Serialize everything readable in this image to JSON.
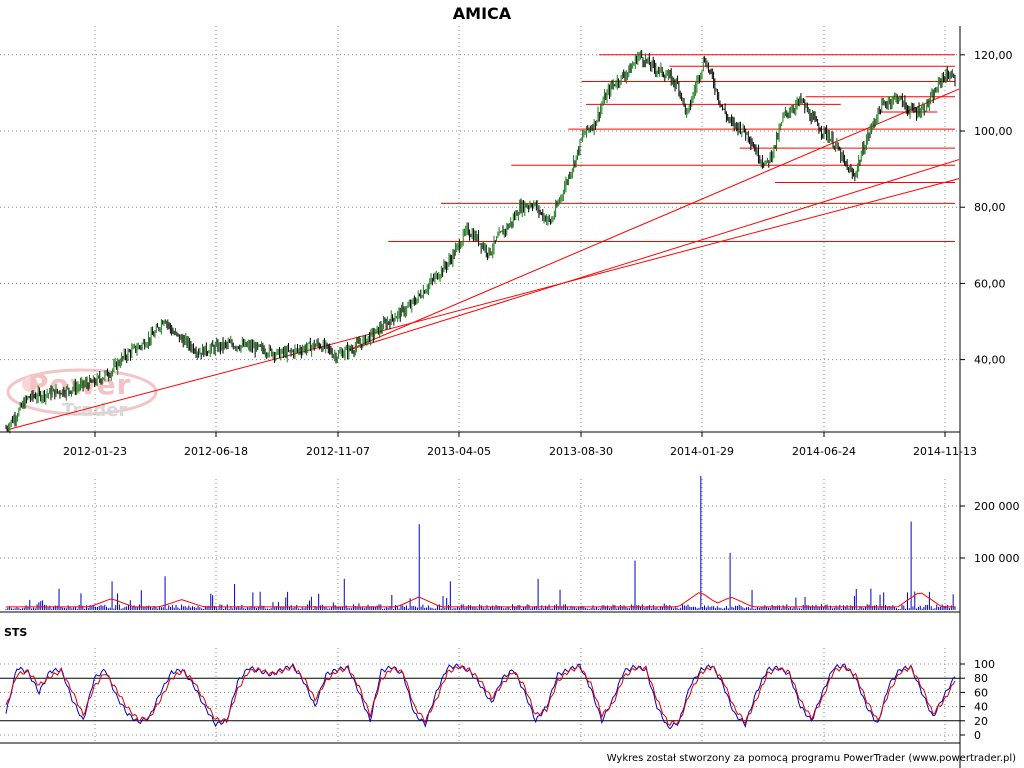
{
  "chart_data": [
    {
      "type": "candlestick",
      "title": "AMICA",
      "x_ticks": [
        "2012-01-23",
        "2012-06-18",
        "2012-11-07",
        "2013-04-05",
        "2013-08-30",
        "2014-01-29",
        "2014-06-24",
        "2014-11-13"
      ],
      "y_ticks": [
        "40,00",
        "60,00",
        "80,00",
        "100,00",
        "120,00"
      ],
      "ylim": [
        21,
        123
      ],
      "grid": true,
      "price_path": [
        [
          0,
          22
        ],
        [
          2,
          25
        ],
        [
          5,
          30
        ],
        [
          9,
          31
        ],
        [
          14,
          32
        ],
        [
          18,
          33.5
        ],
        [
          20,
          34
        ],
        [
          24,
          37
        ],
        [
          27,
          41
        ],
        [
          31,
          44
        ],
        [
          34,
          47
        ],
        [
          36,
          51
        ],
        [
          38,
          47
        ],
        [
          41,
          44.5
        ],
        [
          44,
          42
        ],
        [
          47,
          43
        ],
        [
          51,
          44
        ],
        [
          55,
          43.5
        ],
        [
          59,
          42.5
        ],
        [
          62,
          41.5
        ],
        [
          65,
          42
        ],
        [
          68,
          43
        ],
        [
          71,
          44
        ],
        [
          73,
          43
        ],
        [
          75,
          41
        ],
        [
          77,
          42
        ],
        [
          79,
          43
        ],
        [
          81,
          44.5
        ],
        [
          84,
          47
        ],
        [
          88,
          51
        ],
        [
          92,
          54
        ],
        [
          95,
          58
        ],
        [
          98,
          62
        ],
        [
          101,
          66
        ],
        [
          103,
          70
        ],
        [
          105,
          74
        ],
        [
          107,
          72
        ],
        [
          110,
          68
        ],
        [
          112,
          72
        ],
        [
          115,
          76
        ],
        [
          117,
          80
        ],
        [
          120,
          81
        ],
        [
          122,
          78
        ],
        [
          124,
          76
        ],
        [
          126,
          82
        ],
        [
          128,
          88
        ],
        [
          130,
          94
        ],
        [
          131,
          98
        ],
        [
          132,
          100
        ],
        [
          134,
          102
        ],
        [
          136,
          108
        ],
        [
          138,
          112
        ],
        [
          140,
          114
        ],
        [
          142,
          116
        ],
        [
          144,
          120
        ],
        [
          147,
          117
        ],
        [
          150,
          115
        ],
        [
          153,
          112
        ],
        [
          155,
          104
        ],
        [
          157,
          112
        ],
        [
          159,
          119
        ],
        [
          161,
          113
        ],
        [
          163,
          106
        ],
        [
          165,
          102
        ],
        [
          167,
          101
        ],
        [
          169,
          99
        ],
        [
          171,
          94
        ],
        [
          173,
          91
        ],
        [
          175,
          96
        ],
        [
          177,
          104
        ],
        [
          179,
          106
        ],
        [
          181,
          108
        ],
        [
          183,
          104
        ],
        [
          185,
          101
        ],
        [
          187,
          99
        ],
        [
          189,
          96
        ],
        [
          191,
          91
        ],
        [
          193,
          88
        ],
        [
          195,
          95
        ],
        [
          197,
          101
        ],
        [
          199,
          106
        ],
        [
          201,
          108
        ],
        [
          203,
          109
        ],
        [
          205,
          106
        ],
        [
          207,
          105
        ],
        [
          209,
          106
        ],
        [
          211,
          109
        ],
        [
          213,
          114
        ],
        [
          215,
          115
        ],
        [
          216,
          113
        ]
      ],
      "support_lines": [
        [
          135,
          216,
          120
        ],
        [
          151,
          216,
          117
        ],
        [
          131,
          216,
          113
        ],
        [
          182,
          216,
          109
        ],
        [
          132,
          190,
          107
        ],
        [
          199,
          212,
          105
        ],
        [
          128,
          216,
          100.5
        ],
        [
          167,
          216,
          95.5
        ],
        [
          115,
          216,
          91
        ],
        [
          175,
          216,
          86.5
        ],
        [
          99,
          216,
          81
        ],
        [
          87,
          216,
          71
        ]
      ],
      "trend_lines": [
        [
          0,
          21.5,
          216,
          87.5
        ],
        [
          78,
          42.5,
          216,
          111
        ],
        [
          78,
          42.5,
          216,
          92.5
        ]
      ]
    },
    {
      "type": "bar",
      "title": "",
      "y_ticks": [
        "100 000",
        "200 000"
      ],
      "ylim": [
        0,
        260000
      ],
      "grid": true,
      "spikes": [
        [
          24,
          55000
        ],
        [
          36,
          65000
        ],
        [
          52,
          50000
        ],
        [
          77,
          60000
        ],
        [
          94,
          165000
        ],
        [
          101,
          55000
        ],
        [
          121,
          60000
        ],
        [
          143,
          95000
        ],
        [
          158,
          258000
        ],
        [
          165,
          110000
        ],
        [
          206,
          170000
        ],
        [
          210,
          35000
        ]
      ],
      "avg_bumps": [
        [
          24,
          22000
        ],
        [
          40,
          20000
        ],
        [
          94,
          25000
        ],
        [
          158,
          35000
        ],
        [
          165,
          25000
        ],
        [
          208,
          35000
        ]
      ]
    },
    {
      "type": "line",
      "title": "STS",
      "y_ticks": [
        "0",
        "20",
        "40",
        "60",
        "80",
        "100"
      ],
      "ylim": [
        0,
        100
      ],
      "levels": [
        20,
        80
      ],
      "series": [
        {
          "color": "#0000cc",
          "values": [
            30,
            95,
            88,
            60,
            90,
            92,
            50,
            20,
            80,
            92,
            55,
            30,
            18,
            25,
            60,
            88,
            92,
            70,
            40,
            15,
            20,
            75,
            95,
            90,
            85,
            92,
            98,
            75,
            40,
            85,
            92,
            95,
            60,
            20,
            90,
            96,
            85,
            30,
            15,
            60,
            95,
            98,
            90,
            70,
            45,
            80,
            92,
            60,
            20,
            40,
            85,
            92,
            98,
            65,
            20,
            50,
            90,
            96,
            92,
            40,
            10,
            18,
            70,
            92,
            98,
            70,
            30,
            15,
            60,
            92,
            95,
            85,
            40,
            20,
            60,
            95,
            98,
            80,
            40,
            15,
            70,
            92,
            96,
            60,
            25,
            55,
            82
          ]
        },
        {
          "color": "#dd0000",
          "values": [
            40,
            85,
            90,
            70,
            82,
            90,
            62,
            28,
            68,
            88,
            64,
            38,
            22,
            24,
            50,
            80,
            90,
            76,
            48,
            22,
            20,
            64,
            90,
            92,
            86,
            90,
            96,
            80,
            50,
            76,
            90,
            94,
            68,
            28,
            78,
            94,
            88,
            40,
            20,
            50,
            88,
            96,
            92,
            76,
            52,
            72,
            90,
            68,
            28,
            36,
            76,
            90,
            96,
            72,
            28,
            44,
            82,
            94,
            94,
            50,
            16,
            18,
            60,
            88,
            96,
            76,
            38,
            18,
            50,
            86,
            94,
            88,
            48,
            24,
            52,
            90,
            96,
            84,
            48,
            20,
            60,
            88,
            95,
            68,
            30,
            48,
            76
          ]
        }
      ]
    }
  ],
  "footer": "Wykres został stworzony za pomocą programu PowerTrader (www.powertrader.pl)",
  "watermark": "PowerTrader",
  "colors": {
    "candles": "#000000",
    "trend": "#ff0000",
    "volume": "#0000cc",
    "volume_avg": "#ff0000",
    "sts_fast": "#0000cc",
    "sts_slow": "#dd0000"
  }
}
